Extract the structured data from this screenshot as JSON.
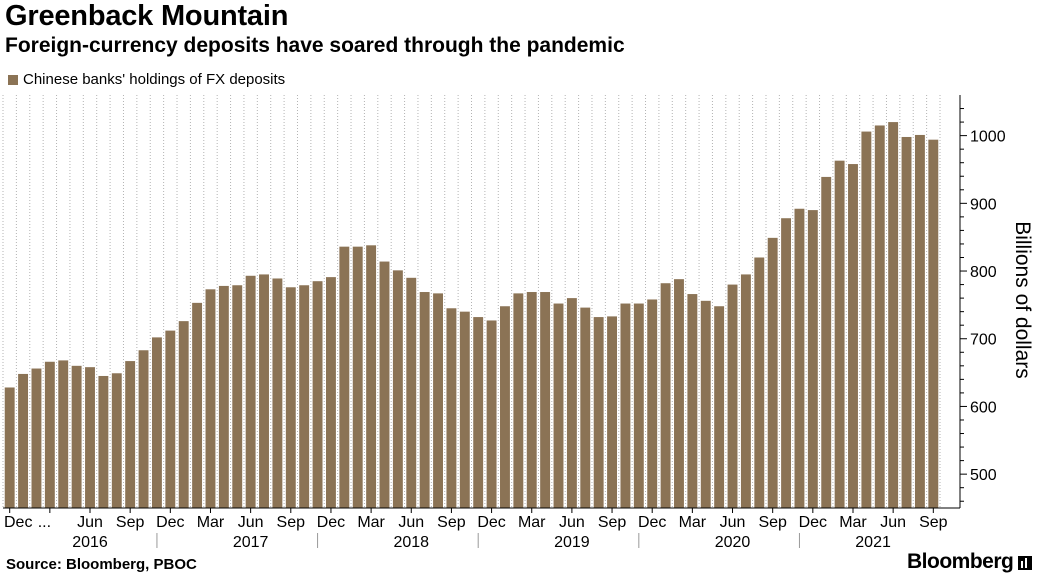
{
  "title": "Greenback Mountain",
  "subtitle": "Foreign-currency deposits have soared through the pandemic",
  "source": "Source: Bloomberg, PBOC",
  "brand": "Bloomberg",
  "chart_data": {
    "type": "bar",
    "title": "Greenback Mountain",
    "subtitle": "Foreign-currency deposits have soared through the pandemic",
    "ylabel": "Billions of dollars",
    "ylim": [
      450,
      1060
    ],
    "yticks": [
      500,
      600,
      700,
      800,
      900,
      1000
    ],
    "y_axis_position": "right",
    "grid": "vertical dotted",
    "legend_position": "top-left",
    "bar_color": "#8b7355",
    "month_tick_labels": [
      "Dec",
      "...",
      "Jun",
      "Sep",
      "Dec",
      "Mar",
      "Jun",
      "Sep",
      "Dec",
      "Mar",
      "Jun",
      "Sep",
      "Dec",
      "Mar",
      "Jun",
      "Sep",
      "Dec",
      "Mar",
      "Jun",
      "Sep",
      "Dec",
      "Mar",
      "Jun",
      "Sep"
    ],
    "year_labels": [
      "2016",
      "2017",
      "2018",
      "2019",
      "2020",
      "2021"
    ],
    "series": [
      {
        "name": "Chinese banks' holdings of FX deposits",
        "categories": [
          "Dec 2015",
          "Jan 2016",
          "Feb 2016",
          "Mar 2016",
          "Apr 2016",
          "May 2016",
          "Jun 2016",
          "Jul 2016",
          "Aug 2016",
          "Sep 2016",
          "Oct 2016",
          "Nov 2016",
          "Dec 2016",
          "Jan 2017",
          "Feb 2017",
          "Mar 2017",
          "Apr 2017",
          "May 2017",
          "Jun 2017",
          "Jul 2017",
          "Aug 2017",
          "Sep 2017",
          "Oct 2017",
          "Nov 2017",
          "Dec 2017",
          "Jan 2018",
          "Feb 2018",
          "Mar 2018",
          "Apr 2018",
          "May 2018",
          "Jun 2018",
          "Jul 2018",
          "Aug 2018",
          "Sep 2018",
          "Oct 2018",
          "Nov 2018",
          "Dec 2018",
          "Jan 2019",
          "Feb 2019",
          "Mar 2019",
          "Apr 2019",
          "May 2019",
          "Jun 2019",
          "Jul 2019",
          "Aug 2019",
          "Sep 2019",
          "Oct 2019",
          "Nov 2019",
          "Dec 2019",
          "Jan 2020",
          "Feb 2020",
          "Mar 2020",
          "Apr 2020",
          "May 2020",
          "Jun 2020",
          "Jul 2020",
          "Aug 2020",
          "Sep 2020",
          "Oct 2020",
          "Nov 2020",
          "Dec 2020",
          "Jan 2021",
          "Feb 2021",
          "Mar 2021",
          "Apr 2021",
          "May 2021",
          "Jun 2021",
          "Jul 2021",
          "Aug 2021",
          "Sep 2021"
        ],
        "values": [
          628,
          648,
          656,
          666,
          668,
          660,
          658,
          645,
          649,
          667,
          683,
          702,
          712,
          726,
          753,
          773,
          778,
          779,
          793,
          795,
          789,
          776,
          779,
          785,
          791,
          836,
          836,
          838,
          814,
          801,
          790,
          769,
          767,
          745,
          740,
          732,
          727,
          748,
          767,
          769,
          769,
          752,
          760,
          746,
          732,
          733,
          752,
          752,
          758,
          782,
          788,
          766,
          756,
          748,
          780,
          795,
          820,
          849,
          878,
          892,
          890,
          939,
          963,
          958,
          1006,
          1015,
          1020,
          998,
          1001,
          994
        ]
      }
    ]
  }
}
